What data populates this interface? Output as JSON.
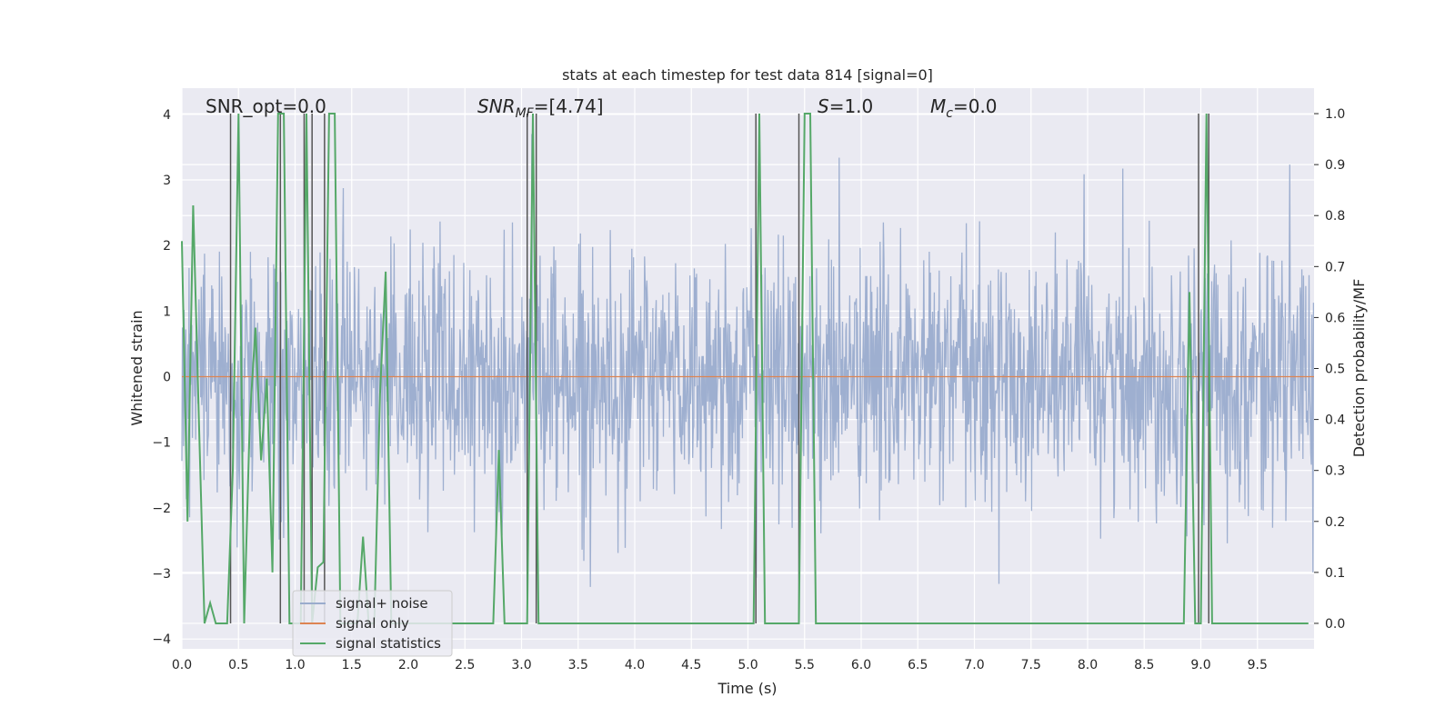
{
  "chart_data": {
    "type": "line",
    "title": "stats at each timestep for test data 814 [signal=0]",
    "xlabel": "Time (s)",
    "ylabel_left": "Whitened strain",
    "ylabel_right": "Detection probability/MF",
    "xlim": [
      0.0,
      10.0
    ],
    "ylim_left": [
      -4.15,
      4.4
    ],
    "ylim_right": [
      -0.05,
      1.05
    ],
    "x_ticks": [
      "0.0",
      "0.5",
      "1.0",
      "1.5",
      "2.0",
      "2.5",
      "3.0",
      "3.5",
      "4.0",
      "4.5",
      "5.0",
      "5.5",
      "6.0",
      "6.5",
      "7.0",
      "7.5",
      "8.0",
      "8.5",
      "9.0",
      "9.5"
    ],
    "y_left_ticks": [
      "4",
      "3",
      "2",
      "1",
      "0",
      "−1",
      "−2",
      "−3",
      "−4"
    ],
    "y_right_ticks": [
      "1.0",
      "0.9",
      "0.8",
      "0.7",
      "0.6",
      "0.5",
      "0.4",
      "0.3",
      "0.2",
      "0.1",
      "0.0"
    ],
    "grid": true,
    "legend_position": "lower-left",
    "annotations": {
      "snr_opt": "SNR_opt=0.0",
      "snr_mf_base": "SNR",
      "snr_mf_sub": "MF",
      "snr_mf_value": "=[4.74]",
      "s_base": "S",
      "s_value": "=1.0",
      "mc_base": "M",
      "mc_sub": "c",
      "mc_value": "=0.0"
    },
    "series": [
      {
        "name": "signal+ noise",
        "axis": "left",
        "color": "#9aaccd",
        "kind": "noise",
        "std": 0.95,
        "approx_range": [
          -3.8,
          3.7
        ]
      },
      {
        "name": "signal only",
        "axis": "left",
        "color": "#dd8452",
        "y_constant": 0.0
      },
      {
        "name": "signal statistics",
        "axis": "right",
        "color": "#55a868",
        "x": [
          0.0,
          0.05,
          0.1,
          0.15,
          0.2,
          0.25,
          0.3,
          0.35,
          0.4,
          0.45,
          0.5,
          0.55,
          0.6,
          0.65,
          0.7,
          0.75,
          0.8,
          0.85,
          0.9,
          0.95,
          1.0,
          1.05,
          1.1,
          1.15,
          1.2,
          1.25,
          1.3,
          1.35,
          1.4,
          1.45,
          1.5,
          1.55,
          1.6,
          1.65,
          1.7,
          1.75,
          1.8,
          1.85,
          1.9,
          1.95,
          2.0,
          2.2,
          2.4,
          2.6,
          2.7,
          2.75,
          2.8,
          2.85,
          2.9,
          3.0,
          3.05,
          3.1,
          3.15,
          3.2,
          3.5,
          4.0,
          4.5,
          5.0,
          5.05,
          5.1,
          5.15,
          5.2,
          5.4,
          5.45,
          5.5,
          5.55,
          5.6,
          5.65,
          6.0,
          7.0,
          8.0,
          8.8,
          8.85,
          8.9,
          8.95,
          9.0,
          9.05,
          9.1,
          9.15,
          9.5,
          9.95
        ],
        "y": [
          0.75,
          0.2,
          0.82,
          0.4,
          0.0,
          0.04,
          0.0,
          0.0,
          0.0,
          0.3,
          1.0,
          0.0,
          0.4,
          0.58,
          0.32,
          0.48,
          0.1,
          1.0,
          1.0,
          0.0,
          0.0,
          0.0,
          1.0,
          0.0,
          0.11,
          0.12,
          1.0,
          1.0,
          0.0,
          0.0,
          0.0,
          0.0,
          0.17,
          0.0,
          0.0,
          0.45,
          0.69,
          0.0,
          0.0,
          0.0,
          0.0,
          0.0,
          0.0,
          0.0,
          0.0,
          0.0,
          0.34,
          0.0,
          0.0,
          0.0,
          0.0,
          1.0,
          0.0,
          0.0,
          0.0,
          0.0,
          0.0,
          0.0,
          0.0,
          1.0,
          0.0,
          0.0,
          0.0,
          0.0,
          1.0,
          1.0,
          0.0,
          0.0,
          0.0,
          0.0,
          0.0,
          0.0,
          0.0,
          0.65,
          0.0,
          0.0,
          1.0,
          0.0,
          0.0,
          0.0,
          0.0
        ]
      }
    ],
    "vlines": {
      "color": "#555555",
      "x": [
        0.43,
        0.87,
        1.08,
        1.15,
        1.26,
        3.05,
        3.13,
        5.07,
        5.45,
        8.98,
        9.07
      ],
      "ylim_right": [
        0.0,
        1.0
      ]
    }
  }
}
